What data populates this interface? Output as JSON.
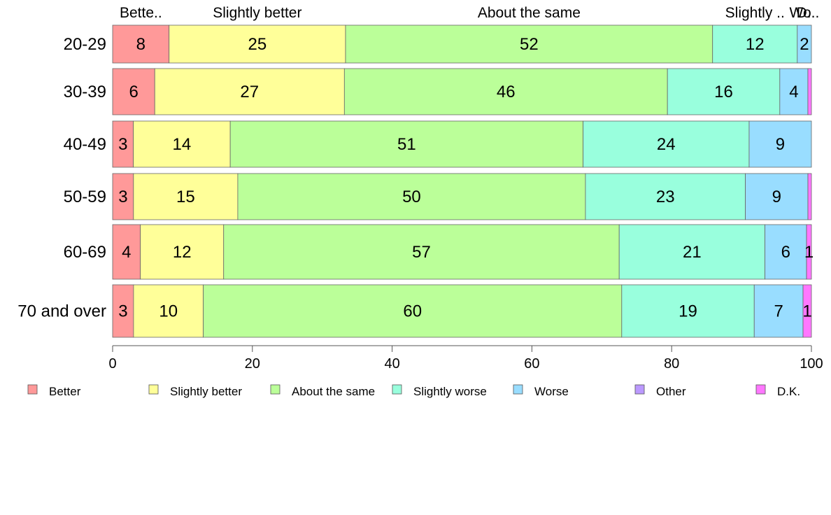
{
  "chart_data": {
    "type": "bar",
    "orientation": "horizontal",
    "stacked": true,
    "percent_scale": true,
    "categories": [
      "20-29",
      "30-39",
      "40-49",
      "50-59",
      "60-69",
      "70 and over"
    ],
    "series": [
      {
        "name": "Better",
        "color": "#FF9999",
        "values": [
          8,
          6,
          3,
          3,
          4,
          3
        ]
      },
      {
        "name": "Slightly better",
        "color": "#FFFF99",
        "values": [
          25,
          27,
          14,
          15,
          12,
          10
        ]
      },
      {
        "name": "About the same",
        "color": "#BBFF99",
        "values": [
          52,
          46,
          51,
          50,
          57,
          60
        ]
      },
      {
        "name": "Slightly worse",
        "color": "#99FFDD",
        "values": [
          12,
          16,
          24,
          23,
          21,
          19
        ]
      },
      {
        "name": "Worse",
        "color": "#99DDFF",
        "values": [
          2,
          4,
          9,
          9,
          6,
          7
        ]
      },
      {
        "name": "Other",
        "color": "#BB99FF",
        "values": [
          0,
          0,
          0,
          0,
          0,
          0
        ]
      },
      {
        "name": "D.K.",
        "color": "#FF77FF",
        "values": [
          0,
          0.5,
          0,
          0.5,
          0.7,
          1.2
        ]
      }
    ],
    "data_labels": [
      [
        "8",
        "25",
        "52",
        "12",
        "2",
        "",
        ""
      ],
      [
        "6",
        "27",
        "46",
        "16",
        "4",
        "",
        ""
      ],
      [
        "3",
        "14",
        "51",
        "24",
        "9",
        "",
        ""
      ],
      [
        "3",
        "15",
        "50",
        "23",
        "9",
        "",
        ""
      ],
      [
        "4",
        "12",
        "57",
        "21",
        "6",
        "",
        "1"
      ],
      [
        "3",
        "10",
        "60",
        "19",
        "7",
        "",
        "1"
      ]
    ],
    "top_labels": [
      "Bette..",
      "Slightly better",
      "About the same",
      "Slightly ..",
      "Wo..",
      "",
      "D.."
    ],
    "xlim": [
      0,
      100
    ],
    "xticks": [
      0,
      20,
      40,
      60,
      80,
      100
    ],
    "grid": false,
    "legend_position": "bottom",
    "legend": [
      "Better",
      "Slightly better",
      "About the same",
      "Slightly worse",
      "Worse",
      "Other",
      "D.K."
    ]
  }
}
